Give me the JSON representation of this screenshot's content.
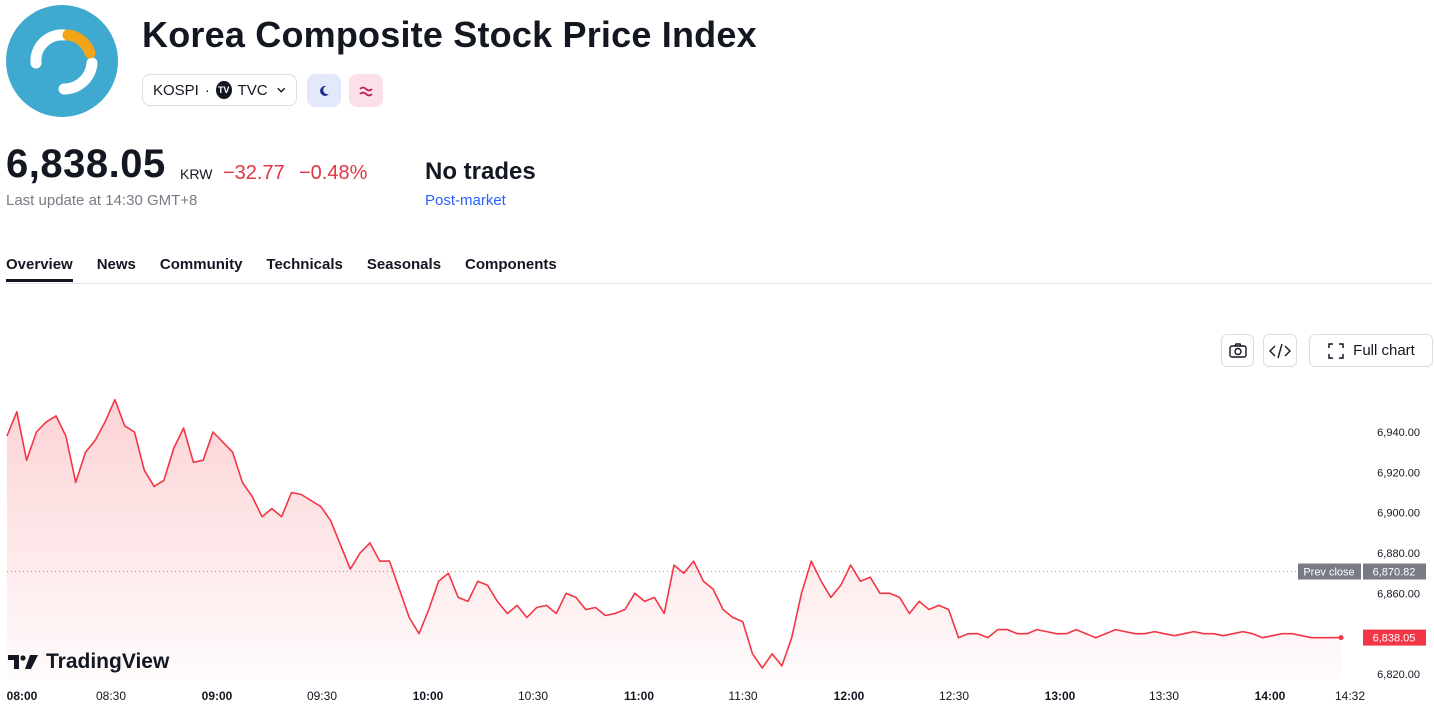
{
  "header": {
    "title": "Korea Composite Stock Price Index",
    "symbol": "KOSPI",
    "separator": "·",
    "exchange": "TVC",
    "exchange_icon": "TV"
  },
  "quote": {
    "price": "6,838.05",
    "currency": "KRW",
    "change": "−32.77",
    "change_pct": "−0.48%",
    "last_update": "Last update at 14:30 GMT+8",
    "session_status": "No trades",
    "session_label": "Post-market"
  },
  "tabs": [
    {
      "label": "Overview",
      "active": true
    },
    {
      "label": "News"
    },
    {
      "label": "Community"
    },
    {
      "label": "Technicals"
    },
    {
      "label": "Seasonals"
    },
    {
      "label": "Components"
    }
  ],
  "toolbar": {
    "full_chart_label": "Full chart",
    "icons": [
      "camera-icon",
      "code-icon",
      "fullscreen-icon"
    ]
  },
  "brand": {
    "name": "TradingView"
  },
  "colors": {
    "line": "#f23645",
    "negative": "#e03545",
    "link": "#2962ff",
    "logo": "#3fa9d0"
  },
  "chart_data": {
    "type": "area",
    "x_ticks": [
      "08:00",
      "08:30",
      "09:00",
      "09:30",
      "10:00",
      "10:30",
      "11:00",
      "11:30",
      "12:00",
      "12:30",
      "13:00",
      "13:30",
      "14:00",
      "14:32"
    ],
    "y_ticks": [
      "6,820.00",
      "6,840.00",
      "6,860.00",
      "6,880.00",
      "6,900.00",
      "6,920.00",
      "6,940.00"
    ],
    "ylim": [
      6818,
      6952
    ],
    "prev_close": {
      "label": "Prev close",
      "value": 6870.82,
      "value_label": "6,870.82"
    },
    "last": {
      "value": 6838.05,
      "value_label": "6,838.05"
    },
    "series": [
      {
        "x_minutes": [
          0,
          2,
          4,
          6,
          8,
          10,
          12,
          14,
          16,
          18,
          20,
          22,
          24,
          26,
          28,
          30,
          32,
          34,
          36,
          38,
          40,
          42,
          44,
          46,
          48,
          50,
          52,
          54,
          56,
          58,
          60,
          62,
          64,
          66,
          68,
          70,
          72,
          74,
          76,
          78,
          80,
          82,
          84,
          86,
          88,
          90,
          92,
          94,
          96,
          98,
          100,
          102,
          104,
          106,
          108,
          110,
          112,
          114,
          116,
          118,
          120,
          122,
          124,
          126,
          128,
          130,
          132,
          134,
          136,
          138,
          140,
          142,
          144,
          146,
          148,
          150,
          152,
          154,
          156,
          158,
          160,
          162,
          164,
          166,
          168,
          170,
          172,
          174,
          176,
          178,
          180,
          182,
          184,
          186,
          188,
          190,
          192,
          194,
          196,
          198,
          200,
          202,
          204,
          206,
          208,
          210,
          212,
          214,
          216,
          218,
          220,
          222,
          224,
          226,
          228,
          230,
          232,
          234,
          236,
          238,
          240,
          242,
          244,
          246,
          248,
          250,
          252,
          254,
          256,
          258,
          260,
          262,
          264,
          266,
          268,
          270,
          272
        ],
        "values": [
          6938,
          6950,
          6926,
          6940,
          6945,
          6948,
          6938,
          6915,
          6930,
          6936,
          6945,
          6956,
          6943,
          6940,
          6921,
          6913,
          6916,
          6932,
          6942,
          6925,
          6926,
          6940,
          6935,
          6930,
          6915,
          6908,
          6898,
          6902,
          6898,
          6910,
          6909,
          6906,
          6903,
          6896,
          6884,
          6872,
          6880,
          6885,
          6876,
          6876,
          6862,
          6848,
          6840,
          6852,
          6866,
          6870,
          6858,
          6856,
          6866,
          6864,
          6856,
          6850,
          6854,
          6848,
          6853,
          6854,
          6850,
          6860,
          6858,
          6852,
          6853,
          6849,
          6850,
          6852,
          6860,
          6856,
          6858,
          6850,
          6874,
          6870,
          6876,
          6866,
          6862,
          6852,
          6848,
          6846,
          6830,
          6823,
          6830,
          6824,
          6838,
          6860,
          6876,
          6866,
          6858,
          6864,
          6874,
          6866,
          6868,
          6860,
          6860,
          6858,
          6850,
          6856,
          6852,
          6854,
          6852,
          6838,
          6840,
          6840,
          6838,
          6842,
          6842,
          6840,
          6840,
          6842,
          6841,
          6840,
          6840,
          6842,
          6840,
          6838,
          6840,
          6842,
          6841,
          6840,
          6840,
          6841,
          6840,
          6839,
          6840,
          6841,
          6840,
          6840,
          6839,
          6840,
          6841,
          6840,
          6838,
          6839,
          6840,
          6840,
          6839,
          6838,
          6838,
          6838,
          6838.05
        ]
      }
    ]
  }
}
